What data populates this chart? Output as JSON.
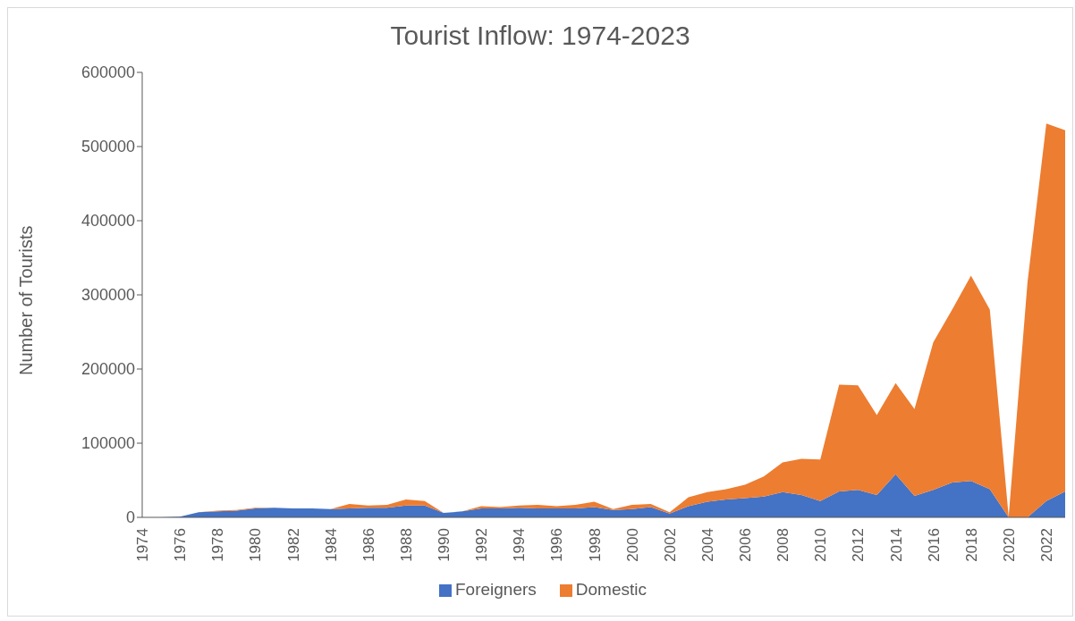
{
  "chart_data": {
    "type": "area",
    "stacked": true,
    "title": "Tourist Inflow: 1974-2023",
    "ylabel": "Number of Tourists",
    "categories": [
      "1974",
      null,
      "1976",
      null,
      "1978",
      null,
      "1980",
      null,
      "1982",
      null,
      "1984",
      null,
      "1986",
      null,
      "1988",
      null,
      "1990",
      null,
      "1992",
      null,
      "1994",
      null,
      "1996",
      null,
      "1998",
      null,
      "2000",
      null,
      "2002",
      null,
      "2004",
      null,
      "2006",
      null,
      "2008",
      null,
      "2010",
      null,
      "2012",
      null,
      "2014",
      null,
      "2016",
      null,
      "2018",
      null,
      "2020",
      null,
      "2022",
      null
    ],
    "series": [
      {
        "name": "Foreigners",
        "color": "#4472c4",
        "values": [
          0,
          0,
          1000,
          7000,
          8000,
          9000,
          12000,
          13000,
          12000,
          12000,
          11000,
          12000,
          13000,
          13000,
          16000,
          16000,
          6000,
          8000,
          12000,
          12000,
          13000,
          12000,
          12000,
          12000,
          14000,
          10000,
          11000,
          14000,
          5000,
          15000,
          21000,
          24000,
          26000,
          28000,
          34000,
          30000,
          22000,
          35000,
          37000,
          30000,
          58000,
          29000,
          37000,
          47000,
          49000,
          38000,
          0,
          0,
          22000,
          35000
        ]
      },
      {
        "name": "Domestic",
        "color": "#ed7d31",
        "values": [
          0,
          0,
          0,
          0,
          1000,
          1000,
          1000,
          0,
          0,
          0,
          0,
          6000,
          3000,
          4000,
          8000,
          6000,
          0,
          0,
          3000,
          2000,
          3000,
          5000,
          3000,
          5000,
          7000,
          1000,
          6000,
          4000,
          2000,
          12000,
          13000,
          14000,
          18000,
          27000,
          40000,
          49000,
          56000,
          144000,
          141000,
          108000,
          123000,
          117000,
          199000,
          233000,
          277000,
          242000,
          1000,
          317000,
          509000,
          487000
        ]
      }
    ],
    "ylim": [
      0,
      600000
    ],
    "yticks": [
      0,
      100000,
      200000,
      300000,
      400000,
      500000,
      600000
    ],
    "legend": "bottom"
  }
}
